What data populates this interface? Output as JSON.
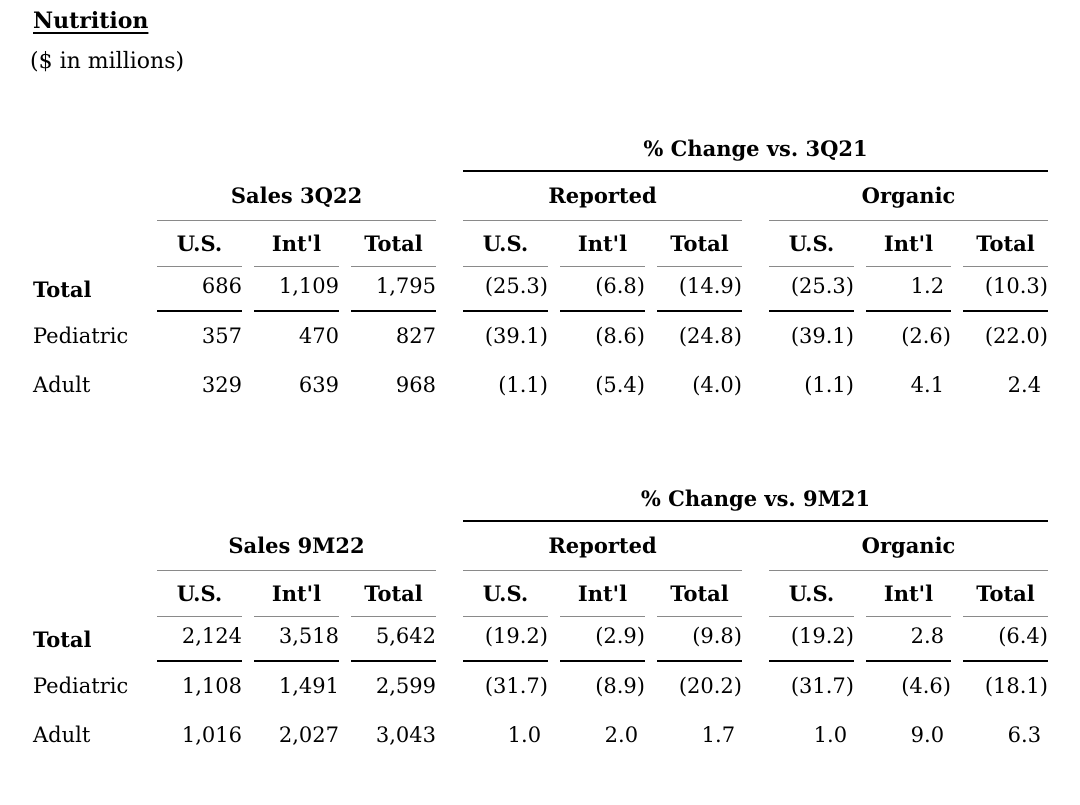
{
  "page": {
    "title": "Nutrition",
    "subtitle": "($ in millions)"
  },
  "col_headers": [
    "U.S.",
    "Int'l",
    "Total"
  ],
  "tables": [
    {
      "change_header": "% Change vs. 3Q21",
      "groups": [
        "Sales 3Q22",
        "Reported",
        "Organic"
      ],
      "rows": [
        {
          "label": "Total",
          "bold": true,
          "sales": [
            "686",
            "1,109",
            "1,795"
          ],
          "reported": [
            "(25.3)",
            "(6.8)",
            "(14.9)"
          ],
          "organic": [
            "(25.3)",
            "1.2",
            "(10.3)"
          ]
        },
        {
          "label": "Pediatric",
          "bold": false,
          "sales": [
            "357",
            "470",
            "827"
          ],
          "reported": [
            "(39.1)",
            "(8.6)",
            "(24.8)"
          ],
          "organic": [
            "(39.1)",
            "(2.6)",
            "(22.0)"
          ]
        },
        {
          "label": "Adult",
          "bold": false,
          "sales": [
            "329",
            "639",
            "968"
          ],
          "reported": [
            "(1.1)",
            "(5.4)",
            "(4.0)"
          ],
          "organic": [
            "(1.1)",
            "4.1",
            "2.4"
          ]
        }
      ]
    },
    {
      "change_header": "% Change vs. 9M21",
      "groups": [
        "Sales 9M22",
        "Reported",
        "Organic"
      ],
      "rows": [
        {
          "label": "Total",
          "bold": true,
          "sales": [
            "2,124",
            "3,518",
            "5,642"
          ],
          "reported": [
            "(19.2)",
            "(2.9)",
            "(9.8)"
          ],
          "organic": [
            "(19.2)",
            "2.8",
            "(6.4)"
          ]
        },
        {
          "label": "Pediatric",
          "bold": false,
          "sales": [
            "1,108",
            "1,491",
            "2,599"
          ],
          "reported": [
            "(31.7)",
            "(8.9)",
            "(20.2)"
          ],
          "organic": [
            "(31.7)",
            "(4.6)",
            "(18.1)"
          ]
        },
        {
          "label": "Adult",
          "bold": false,
          "sales": [
            "1,016",
            "2,027",
            "3,043"
          ],
          "reported": [
            "1.0",
            "2.0",
            "1.7"
          ],
          "organic": [
            "1.0",
            "9.0",
            "6.3"
          ]
        }
      ]
    }
  ]
}
